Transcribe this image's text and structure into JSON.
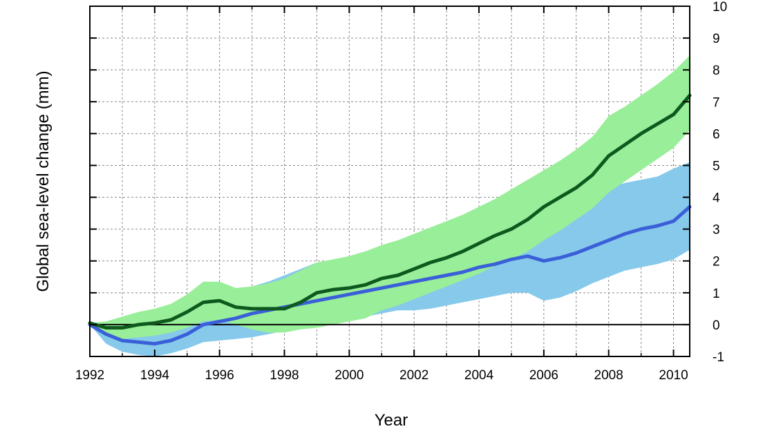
{
  "chart_data": {
    "type": "area",
    "title": "",
    "xlabel": "Year",
    "ylabel": "Global sea-level change (mm)",
    "xlim": [
      1992,
      2010.5
    ],
    "ylim": [
      -1,
      10
    ],
    "x_ticks": [
      1992,
      1994,
      1996,
      1998,
      2000,
      2002,
      2004,
      2006,
      2008,
      2010
    ],
    "x_tick_labels": [
      "1992",
      "1994",
      "1996",
      "1998",
      "2000",
      "2002",
      "2004",
      "2006",
      "2008",
      "2010"
    ],
    "y_ticks": [
      -1,
      0,
      1,
      2,
      3,
      4,
      5,
      6,
      7,
      8,
      9,
      10
    ],
    "y_tick_labels": [
      "-1",
      "0",
      "1",
      "2",
      "3",
      "4",
      "5",
      "6",
      "7",
      "8",
      "9",
      "10"
    ],
    "y_axis_side": "right",
    "grid": true,
    "zero_line": true,
    "legend": "none",
    "series": [
      {
        "color": "#3a5fd8",
        "band_color": "#86c9ea",
        "x": [
          1992,
          1992.5,
          1993,
          1993.5,
          1994,
          1994.5,
          1995,
          1995.5,
          1996,
          1996.5,
          1997,
          1997.5,
          1998,
          1998.5,
          1999,
          1999.5,
          2000,
          2000.5,
          2001,
          2001.5,
          2002,
          2002.5,
          2003,
          2003.5,
          2004,
          2004.5,
          2005,
          2005.5,
          2006,
          2006.5,
          2007,
          2007.5,
          2008,
          2008.5,
          2009,
          2009.5,
          2010,
          2010.5
        ],
        "values": [
          0.0,
          -0.3,
          -0.5,
          -0.55,
          -0.6,
          -0.5,
          -0.3,
          0.0,
          0.1,
          0.2,
          0.35,
          0.45,
          0.55,
          0.65,
          0.75,
          0.85,
          0.95,
          1.05,
          1.15,
          1.25,
          1.35,
          1.45,
          1.55,
          1.65,
          1.8,
          1.9,
          2.05,
          2.15,
          2.0,
          2.1,
          2.25,
          2.45,
          2.65,
          2.85,
          3.0,
          3.1,
          3.25,
          3.7
        ],
        "lower": [
          0.0,
          -0.6,
          -0.85,
          -0.95,
          -1.0,
          -0.9,
          -0.75,
          -0.55,
          -0.5,
          -0.45,
          -0.4,
          -0.3,
          -0.2,
          -0.15,
          -0.05,
          0.05,
          0.15,
          0.25,
          0.35,
          0.45,
          0.45,
          0.5,
          0.6,
          0.7,
          0.8,
          0.9,
          1.0,
          1.0,
          0.75,
          0.85,
          1.05,
          1.3,
          1.5,
          1.7,
          1.8,
          1.9,
          2.05,
          2.35
        ],
        "upper": [
          0.0,
          -0.1,
          -0.2,
          -0.2,
          -0.25,
          -0.1,
          0.15,
          0.6,
          0.95,
          1.05,
          1.2,
          1.35,
          1.55,
          1.75,
          1.95,
          2.0,
          2.15,
          2.3,
          2.45,
          2.6,
          2.8,
          2.95,
          3.1,
          3.25,
          3.4,
          3.55,
          3.65,
          3.75,
          3.75,
          3.85,
          4.0,
          4.15,
          4.3,
          4.45,
          4.55,
          4.65,
          4.9,
          5.1
        ]
      },
      {
        "color": "#0e5a1e",
        "band_color": "#99ee99",
        "x": [
          1992,
          1992.5,
          1993,
          1993.5,
          1994,
          1994.5,
          1995,
          1995.5,
          1996,
          1996.5,
          1997,
          1997.5,
          1998,
          1998.5,
          1999,
          1999.5,
          2000,
          2000.5,
          2001,
          2001.5,
          2002,
          2002.5,
          2003,
          2003.5,
          2004,
          2004.5,
          2005,
          2005.5,
          2006,
          2006.5,
          2007,
          2007.5,
          2008,
          2008.5,
          2009,
          2009.5,
          2010,
          2010.5
        ],
        "values": [
          0.05,
          -0.1,
          -0.1,
          0.0,
          0.05,
          0.15,
          0.4,
          0.7,
          0.75,
          0.55,
          0.5,
          0.5,
          0.5,
          0.7,
          1.0,
          1.1,
          1.15,
          1.25,
          1.45,
          1.55,
          1.75,
          1.95,
          2.1,
          2.3,
          2.55,
          2.8,
          3.0,
          3.3,
          3.7,
          4.0,
          4.3,
          4.7,
          5.3,
          5.65,
          6.0,
          6.3,
          6.6,
          7.2
        ],
        "lower": [
          0.05,
          -0.25,
          -0.45,
          -0.4,
          -0.35,
          -0.25,
          -0.1,
          0.1,
          0.15,
          0.0,
          -0.15,
          -0.25,
          -0.25,
          -0.15,
          -0.1,
          0.0,
          0.1,
          0.2,
          0.45,
          0.6,
          0.8,
          1.0,
          1.2,
          1.4,
          1.6,
          1.85,
          2.05,
          2.3,
          2.65,
          2.95,
          3.3,
          3.65,
          4.15,
          4.5,
          4.85,
          5.2,
          5.55,
          6.1
        ],
        "upper": [
          0.05,
          0.1,
          0.25,
          0.4,
          0.5,
          0.65,
          0.95,
          1.35,
          1.35,
          1.15,
          1.2,
          1.3,
          1.45,
          1.7,
          1.95,
          2.05,
          2.15,
          2.3,
          2.5,
          2.65,
          2.85,
          3.05,
          3.25,
          3.45,
          3.7,
          3.95,
          4.25,
          4.55,
          4.85,
          5.15,
          5.5,
          5.9,
          6.55,
          6.85,
          7.2,
          7.55,
          7.95,
          8.45
        ]
      }
    ]
  }
}
